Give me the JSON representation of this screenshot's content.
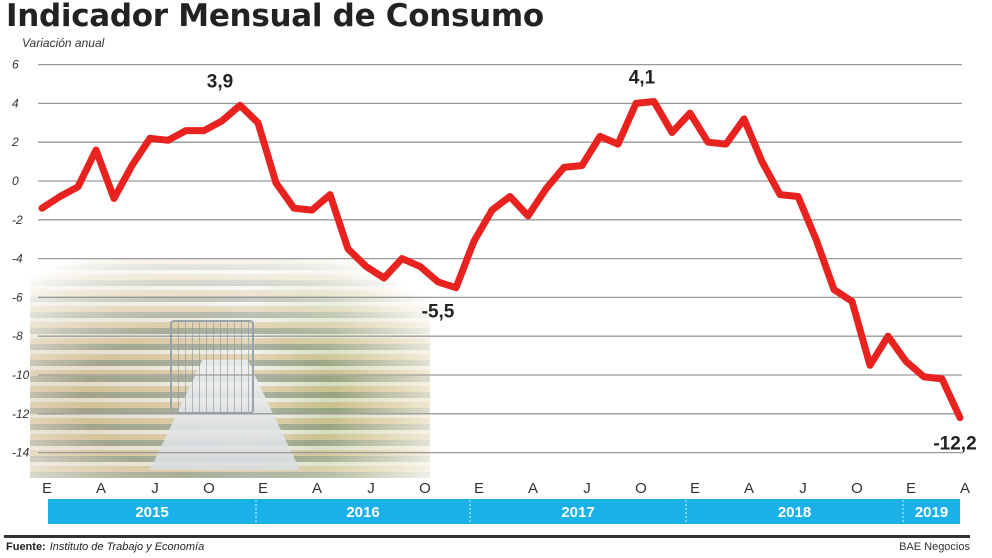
{
  "chart_data": {
    "type": "line",
    "title": "Indicador Mensual de Consumo",
    "subtitle": "Variación anual",
    "ylim": [
      -14,
      6
    ],
    "yticks": [
      6,
      4,
      2,
      0,
      -2,
      -4,
      -6,
      -8,
      -10,
      -12,
      -14
    ],
    "grid": true,
    "month_labels": [
      "E",
      "A",
      "J",
      "O",
      "E",
      "A",
      "J",
      "O",
      "E",
      "A",
      "J",
      "O",
      "E",
      "A",
      "J",
      "O",
      "E",
      "A"
    ],
    "years": [
      "2015",
      "2016",
      "2017",
      "2018",
      "2019"
    ],
    "series": [
      {
        "color": "#e8221f",
        "values": [
          -1.4,
          -0.8,
          -0.3,
          1.6,
          -0.9,
          0.8,
          2.2,
          2.1,
          2.6,
          2.6,
          3.1,
          3.9,
          3.0,
          -0.1,
          -1.4,
          -1.5,
          -0.7,
          -3.5,
          -4.4,
          -5.0,
          -4.0,
          -4.4,
          -5.2,
          -5.5,
          -3.1,
          -1.5,
          -0.8,
          -1.8,
          -0.4,
          0.7,
          0.8,
          2.3,
          1.9,
          4.0,
          4.1,
          2.5,
          3.5,
          2.0,
          1.9,
          3.2,
          1.0,
          -0.7,
          -0.8,
          -3.0,
          -5.6,
          -6.2,
          -9.5,
          -8.0,
          -9.3,
          -10.1,
          -10.2,
          -12.2
        ]
      }
    ],
    "annotations": [
      {
        "index": 11,
        "text": "3,9"
      },
      {
        "index": 23,
        "text": "-5,5"
      },
      {
        "index": 34,
        "text": "4,1"
      },
      {
        "index": 51,
        "text": "-12,2"
      }
    ],
    "year_bar_color": "#19b1e8"
  },
  "footer": {
    "source_label": "Fuente:",
    "source_text": "Instituto de Trabajo y Economía",
    "credit": "BAE Negocios"
  }
}
